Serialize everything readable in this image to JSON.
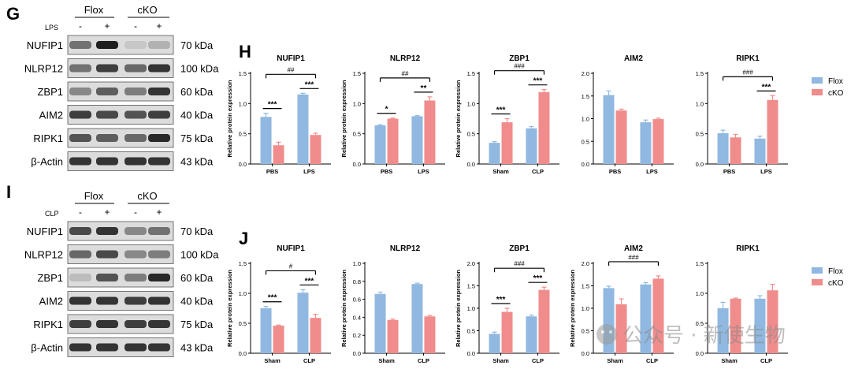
{
  "figure": {
    "panels": {
      "g": "G",
      "i": "I",
      "h": "H",
      "j": "J"
    },
    "watermark": "公众号 · 新使生物"
  },
  "blot_g": {
    "groups": [
      "Flox",
      "cKO"
    ],
    "treatment_label": "LPS",
    "signs": [
      "-",
      "+",
      "-",
      "+"
    ],
    "rows": [
      {
        "protein": "NUFIP1",
        "size": "70 kDa",
        "intensity": [
          0.55,
          0.95,
          0.15,
          0.25
        ]
      },
      {
        "protein": "NLRP12",
        "size": "100 kDa",
        "intensity": [
          0.55,
          0.8,
          0.6,
          0.85
        ]
      },
      {
        "protein": "ZBP1",
        "size": "60 kDa",
        "intensity": [
          0.45,
          0.65,
          0.5,
          0.85
        ]
      },
      {
        "protein": "AIM2",
        "size": "40 kDa",
        "intensity": [
          0.8,
          0.75,
          0.7,
          0.8
        ]
      },
      {
        "protein": "RIPK1",
        "size": "75 kDa",
        "intensity": [
          0.7,
          0.65,
          0.6,
          0.9
        ]
      },
      {
        "protein": "β-Actin",
        "size": "43 kDa",
        "intensity": [
          0.85,
          0.85,
          0.85,
          0.85
        ]
      }
    ]
  },
  "blot_i": {
    "groups": [
      "Flox",
      "cKO"
    ],
    "treatment_label": "CLP",
    "signs": [
      "-",
      "+",
      "-",
      "+"
    ],
    "rows": [
      {
        "protein": "NUFIP1",
        "size": "70 kDa",
        "intensity": [
          0.75,
          0.85,
          0.45,
          0.55
        ]
      },
      {
        "protein": "NLRP12",
        "size": "100 kDa",
        "intensity": [
          0.6,
          0.75,
          0.45,
          0.5
        ]
      },
      {
        "protein": "ZBP1",
        "size": "60 kDa",
        "intensity": [
          0.2,
          0.7,
          0.5,
          0.9
        ]
      },
      {
        "protein": "AIM2",
        "size": "40 kDa",
        "intensity": [
          0.85,
          0.85,
          0.8,
          0.85
        ]
      },
      {
        "protein": "RIPK1",
        "size": "75 kDa",
        "intensity": [
          0.8,
          0.85,
          0.8,
          0.85
        ]
      },
      {
        "protein": "β-Actin",
        "size": "43 kDa",
        "intensity": [
          0.85,
          0.85,
          0.85,
          0.85
        ]
      }
    ]
  },
  "legend": {
    "entries": [
      "Flox",
      "cKO"
    ],
    "colors": [
      "#90B8E0",
      "#F08C8C"
    ]
  },
  "chart_data": [
    {
      "id": "H-NUFIP1",
      "type": "bar",
      "title": "NUFIP1",
      "ylabel": "Relative protein expression",
      "ylim": [
        0,
        1.5
      ],
      "yticks": [
        "0.0",
        "0.5",
        "1.0",
        "1.5"
      ],
      "categories": [
        "PBS",
        "LPS"
      ],
      "series": [
        {
          "name": "Flox",
          "values": [
            0.78,
            1.15
          ],
          "errors": [
            0.06,
            0.02
          ]
        },
        {
          "name": "cKO",
          "values": [
            0.31,
            0.48
          ],
          "errors": [
            0.05,
            0.03
          ]
        }
      ],
      "annotations": [
        {
          "type": "within",
          "cat": 0,
          "text": "***"
        },
        {
          "type": "within",
          "cat": 1,
          "text": "***"
        },
        {
          "type": "across",
          "text": "##"
        }
      ]
    },
    {
      "id": "H-NLRP12",
      "type": "bar",
      "title": "NLRP12",
      "ylabel": "Relative protein expression",
      "ylim": [
        0,
        1.5
      ],
      "yticks": [
        "0.0",
        "0.5",
        "1.0",
        "1.5"
      ],
      "categories": [
        "PBS",
        "LPS"
      ],
      "series": [
        {
          "name": "Flox",
          "values": [
            0.64,
            0.79
          ],
          "errors": [
            0.01,
            0.01
          ]
        },
        {
          "name": "cKO",
          "values": [
            0.75,
            1.05
          ],
          "errors": [
            0.01,
            0.06
          ]
        }
      ],
      "annotations": [
        {
          "type": "within",
          "cat": 0,
          "text": "*"
        },
        {
          "type": "within",
          "cat": 1,
          "text": "**"
        },
        {
          "type": "across",
          "text": "##"
        }
      ]
    },
    {
      "id": "H-ZBP1",
      "type": "bar",
      "title": "ZBP1",
      "ylabel": "Relative protein expression",
      "ylim": [
        0,
        1.5
      ],
      "yticks": [
        "0.0",
        "0.5",
        "1.0",
        "1.5"
      ],
      "categories": [
        "Sham",
        "CLP"
      ],
      "series": [
        {
          "name": "Flox",
          "values": [
            0.35,
            0.59
          ],
          "errors": [
            0.02,
            0.03
          ]
        },
        {
          "name": "cKO",
          "values": [
            0.69,
            1.19
          ],
          "errors": [
            0.06,
            0.04
          ]
        }
      ],
      "annotations": [
        {
          "type": "within",
          "cat": 0,
          "text": "***"
        },
        {
          "type": "within",
          "cat": 1,
          "text": "***"
        },
        {
          "type": "across",
          "text": "###"
        }
      ]
    },
    {
      "id": "H-AIM2",
      "type": "bar",
      "title": "AIM2",
      "ylabel": "",
      "ylim": [
        0,
        2.0
      ],
      "yticks": [
        "0.0",
        "0.5",
        "1.0",
        "1.5",
        "2.0"
      ],
      "categories": [
        "PBS",
        "LPS"
      ],
      "series": [
        {
          "name": "Flox",
          "values": [
            1.52,
            0.92
          ],
          "errors": [
            0.09,
            0.05
          ]
        },
        {
          "name": "cKO",
          "values": [
            1.18,
            0.99
          ],
          "errors": [
            0.03,
            0.02
          ]
        }
      ],
      "annotations": []
    },
    {
      "id": "H-RIPK1",
      "type": "bar",
      "title": "RIPK1",
      "ylabel": "",
      "ylim": [
        0,
        1.5
      ],
      "yticks": [
        "0.0",
        "0.5",
        "1.0",
        "1.5"
      ],
      "categories": [
        "PBS",
        "LPS"
      ],
      "series": [
        {
          "name": "Flox",
          "values": [
            0.51,
            0.42
          ],
          "errors": [
            0.05,
            0.04
          ]
        },
        {
          "name": "cKO",
          "values": [
            0.44,
            1.06
          ],
          "errors": [
            0.05,
            0.07
          ]
        }
      ],
      "annotations": [
        {
          "type": "within",
          "cat": 1,
          "text": "***"
        },
        {
          "type": "across",
          "text": "###"
        }
      ]
    },
    {
      "id": "J-NUFIP1",
      "type": "bar",
      "title": "NUFIP1",
      "ylabel": "Relative protein expression",
      "ylim": [
        0,
        1.5
      ],
      "yticks": [
        "0.0",
        "0.5",
        "1.0",
        "1.5"
      ],
      "categories": [
        "Sham",
        "CLP"
      ],
      "series": [
        {
          "name": "Flox",
          "values": [
            0.75,
            1.01
          ],
          "errors": [
            0.03,
            0.05
          ]
        },
        {
          "name": "cKO",
          "values": [
            0.46,
            0.59
          ],
          "errors": [
            0.01,
            0.06
          ]
        }
      ],
      "annotations": [
        {
          "type": "within",
          "cat": 0,
          "text": "***"
        },
        {
          "type": "within",
          "cat": 1,
          "text": "***"
        },
        {
          "type": "across",
          "text": "#"
        }
      ]
    },
    {
      "id": "J-NLRP12",
      "type": "bar",
      "title": "NLRP12",
      "ylabel": "Relative protein expression",
      "ylim": [
        0,
        1.0
      ],
      "yticks": [
        "0.0",
        "0.2",
        "0.4",
        "0.6",
        "0.8",
        "1.0"
      ],
      "categories": [
        "Sham",
        "CLP"
      ],
      "series": [
        {
          "name": "Flox",
          "values": [
            0.66,
            0.77
          ],
          "errors": [
            0.02,
            0.01
          ]
        },
        {
          "name": "cKO",
          "values": [
            0.37,
            0.41
          ],
          "errors": [
            0.01,
            0.01
          ]
        }
      ],
      "annotations": []
    },
    {
      "id": "J-ZBP1",
      "type": "bar",
      "title": "ZBP1",
      "ylabel": "Relative protein expression",
      "ylim": [
        0,
        2.0
      ],
      "yticks": [
        "0.0",
        "0.5",
        "1.0",
        "1.5",
        "2.0"
      ],
      "categories": [
        "Sham",
        "CLP"
      ],
      "series": [
        {
          "name": "Flox",
          "values": [
            0.43,
            0.82
          ],
          "errors": [
            0.04,
            0.03
          ]
        },
        {
          "name": "cKO",
          "values": [
            0.92,
            1.41
          ],
          "errors": [
            0.08,
            0.06
          ]
        }
      ],
      "annotations": [
        {
          "type": "within",
          "cat": 0,
          "text": "***"
        },
        {
          "type": "within",
          "cat": 1,
          "text": "***"
        },
        {
          "type": "across",
          "text": "###"
        }
      ]
    },
    {
      "id": "J-AIM2",
      "type": "bar",
      "title": "AIM2",
      "ylabel": "Relative protein expression",
      "ylim": [
        0,
        2.0
      ],
      "yticks": [
        "0.0",
        "0.5",
        "1.0",
        "1.5",
        "2.0"
      ],
      "categories": [
        "Sham",
        "CLP"
      ],
      "series": [
        {
          "name": "Flox",
          "values": [
            1.45,
            1.53
          ],
          "errors": [
            0.04,
            0.04
          ]
        },
        {
          "name": "cKO",
          "values": [
            1.09,
            1.66
          ],
          "errors": [
            0.12,
            0.06
          ]
        }
      ],
      "annotations": [
        {
          "type": "across",
          "text": "###"
        }
      ]
    },
    {
      "id": "J-RIPK1",
      "type": "bar",
      "title": "RIPK1",
      "ylabel": "",
      "ylim": [
        0,
        1.5
      ],
      "yticks": [
        "0.0",
        "0.5",
        "1.0",
        "1.5"
      ],
      "categories": [
        "Sham",
        "CLP"
      ],
      "series": [
        {
          "name": "Flox",
          "values": [
            0.75,
            0.91
          ],
          "errors": [
            0.1,
            0.05
          ]
        },
        {
          "name": "cKO",
          "values": [
            0.91,
            1.05
          ],
          "errors": [
            0.01,
            0.1
          ]
        }
      ],
      "annotations": []
    }
  ]
}
